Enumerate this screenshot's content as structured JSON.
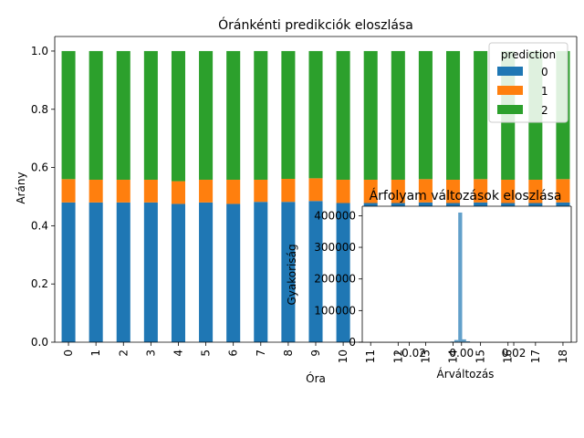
{
  "chart_data": [
    {
      "type": "bar",
      "stacked": true,
      "title": "Óránkénti predikciók eloszlása",
      "xlabel": "Óra",
      "ylabel": "Arány",
      "categories": [
        "0",
        "1",
        "2",
        "3",
        "4",
        "5",
        "6",
        "7",
        "8",
        "9",
        "10",
        "11",
        "12",
        "13",
        "14",
        "15",
        "16",
        "17",
        "18"
      ],
      "ylim": [
        0,
        1.05
      ],
      "yticks": [
        "0.0",
        "0.2",
        "0.4",
        "0.6",
        "0.8",
        "1.0"
      ],
      "legend": {
        "title": "prediction",
        "position": "upper-right"
      },
      "series": [
        {
          "name": "0",
          "color": "#1f77b4",
          "values": [
            0.48,
            0.48,
            0.48,
            0.48,
            0.475,
            0.48,
            0.475,
            0.482,
            0.482,
            0.485,
            0.478,
            0.478,
            0.478,
            0.48,
            0.478,
            0.48,
            0.478,
            0.478,
            0.48
          ]
        },
        {
          "name": "1",
          "color": "#ff7f0e",
          "values": [
            0.08,
            0.078,
            0.078,
            0.078,
            0.078,
            0.078,
            0.083,
            0.076,
            0.079,
            0.078,
            0.08,
            0.08,
            0.08,
            0.08,
            0.08,
            0.08,
            0.08,
            0.08,
            0.08
          ]
        },
        {
          "name": "2",
          "color": "#2ca02c",
          "values": [
            0.44,
            0.442,
            0.442,
            0.442,
            0.447,
            0.442,
            0.442,
            0.442,
            0.439,
            0.437,
            0.442,
            0.442,
            0.442,
            0.44,
            0.442,
            0.44,
            0.442,
            0.442,
            0.44
          ]
        }
      ],
      "grid": false
    },
    {
      "type": "histogram",
      "title": "Árfolyam változások eloszlása",
      "xlabel": "Árváltozás",
      "ylabel": "Gyakoriság",
      "xticks": [
        "−0.02",
        "0.00",
        "0.02"
      ],
      "yticks": [
        "0",
        "100000",
        "200000",
        "300000",
        "400000"
      ],
      "xlim": [
        -0.038,
        0.042
      ],
      "ylim": [
        0,
        430000
      ],
      "bar_color": "#1f77b4",
      "bins": [
        {
          "x": -0.0035,
          "value": 2000
        },
        {
          "x": -0.002,
          "value": 7000
        },
        {
          "x": -0.0005,
          "value": 410000
        },
        {
          "x": 0.001,
          "value": 9000
        },
        {
          "x": 0.0025,
          "value": 3000
        }
      ],
      "grid": false
    }
  ]
}
